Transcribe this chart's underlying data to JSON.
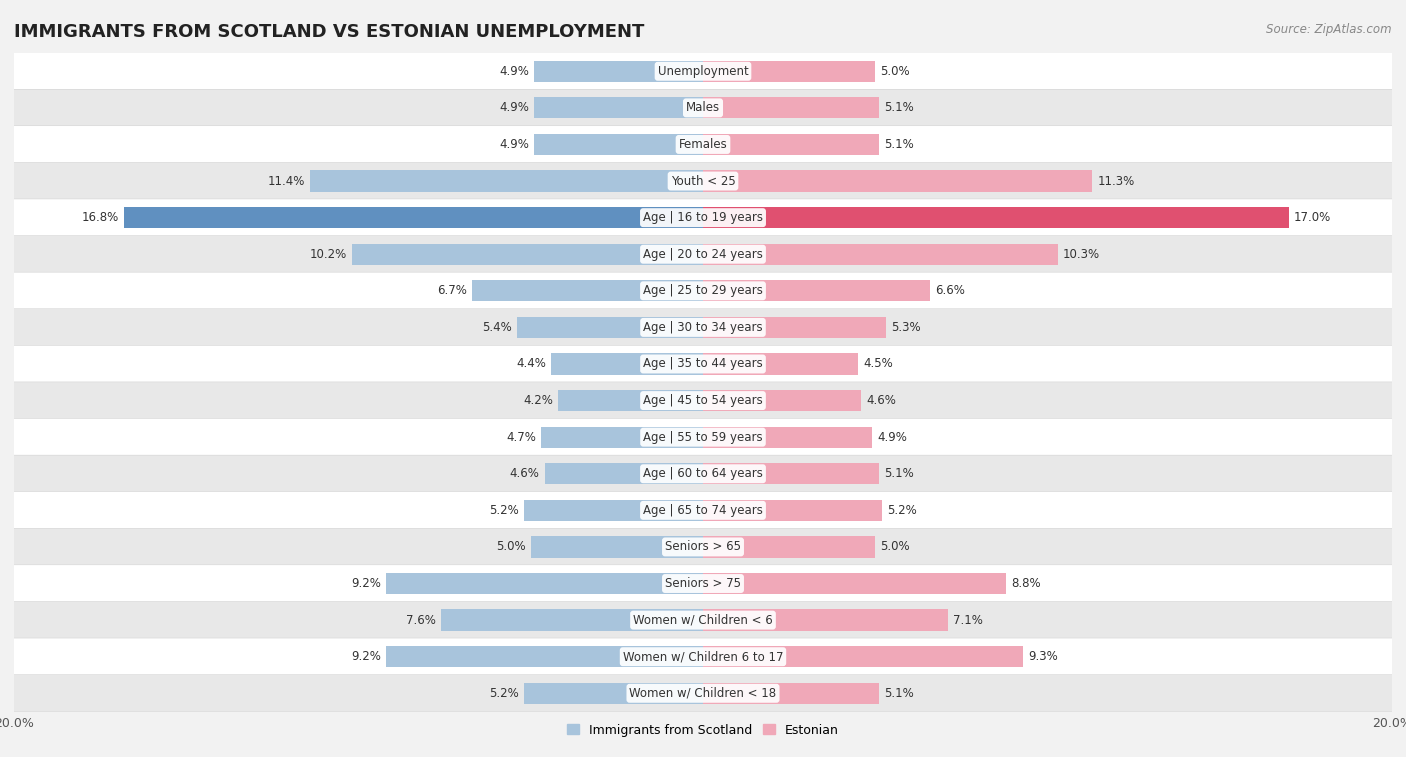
{
  "title": "IMMIGRANTS FROM SCOTLAND VS ESTONIAN UNEMPLOYMENT",
  "source": "Source: ZipAtlas.com",
  "categories": [
    "Unemployment",
    "Males",
    "Females",
    "Youth < 25",
    "Age | 16 to 19 years",
    "Age | 20 to 24 years",
    "Age | 25 to 29 years",
    "Age | 30 to 34 years",
    "Age | 35 to 44 years",
    "Age | 45 to 54 years",
    "Age | 55 to 59 years",
    "Age | 60 to 64 years",
    "Age | 65 to 74 years",
    "Seniors > 65",
    "Seniors > 75",
    "Women w/ Children < 6",
    "Women w/ Children 6 to 17",
    "Women w/ Children < 18"
  ],
  "scotland_values": [
    4.9,
    4.9,
    4.9,
    11.4,
    16.8,
    10.2,
    6.7,
    5.4,
    4.4,
    4.2,
    4.7,
    4.6,
    5.2,
    5.0,
    9.2,
    7.6,
    9.2,
    5.2
  ],
  "estonian_values": [
    5.0,
    5.1,
    5.1,
    11.3,
    17.0,
    10.3,
    6.6,
    5.3,
    4.5,
    4.6,
    4.9,
    5.1,
    5.2,
    5.0,
    8.8,
    7.1,
    9.3,
    5.1
  ],
  "scotland_color": "#a8c4dc",
  "estonian_color": "#f0a8b8",
  "scotland_highlight_color": "#6090c0",
  "estonian_highlight_color": "#e05070",
  "bar_height": 0.58,
  "xlim": 20,
  "background_color": "#f2f2f2",
  "row_color_odd": "#ffffff",
  "row_color_even": "#e8e8e8",
  "label_fontsize": 8.5,
  "value_fontsize": 8.5,
  "title_fontsize": 13,
  "legend_fontsize": 9,
  "highlight_rows": [
    4
  ]
}
